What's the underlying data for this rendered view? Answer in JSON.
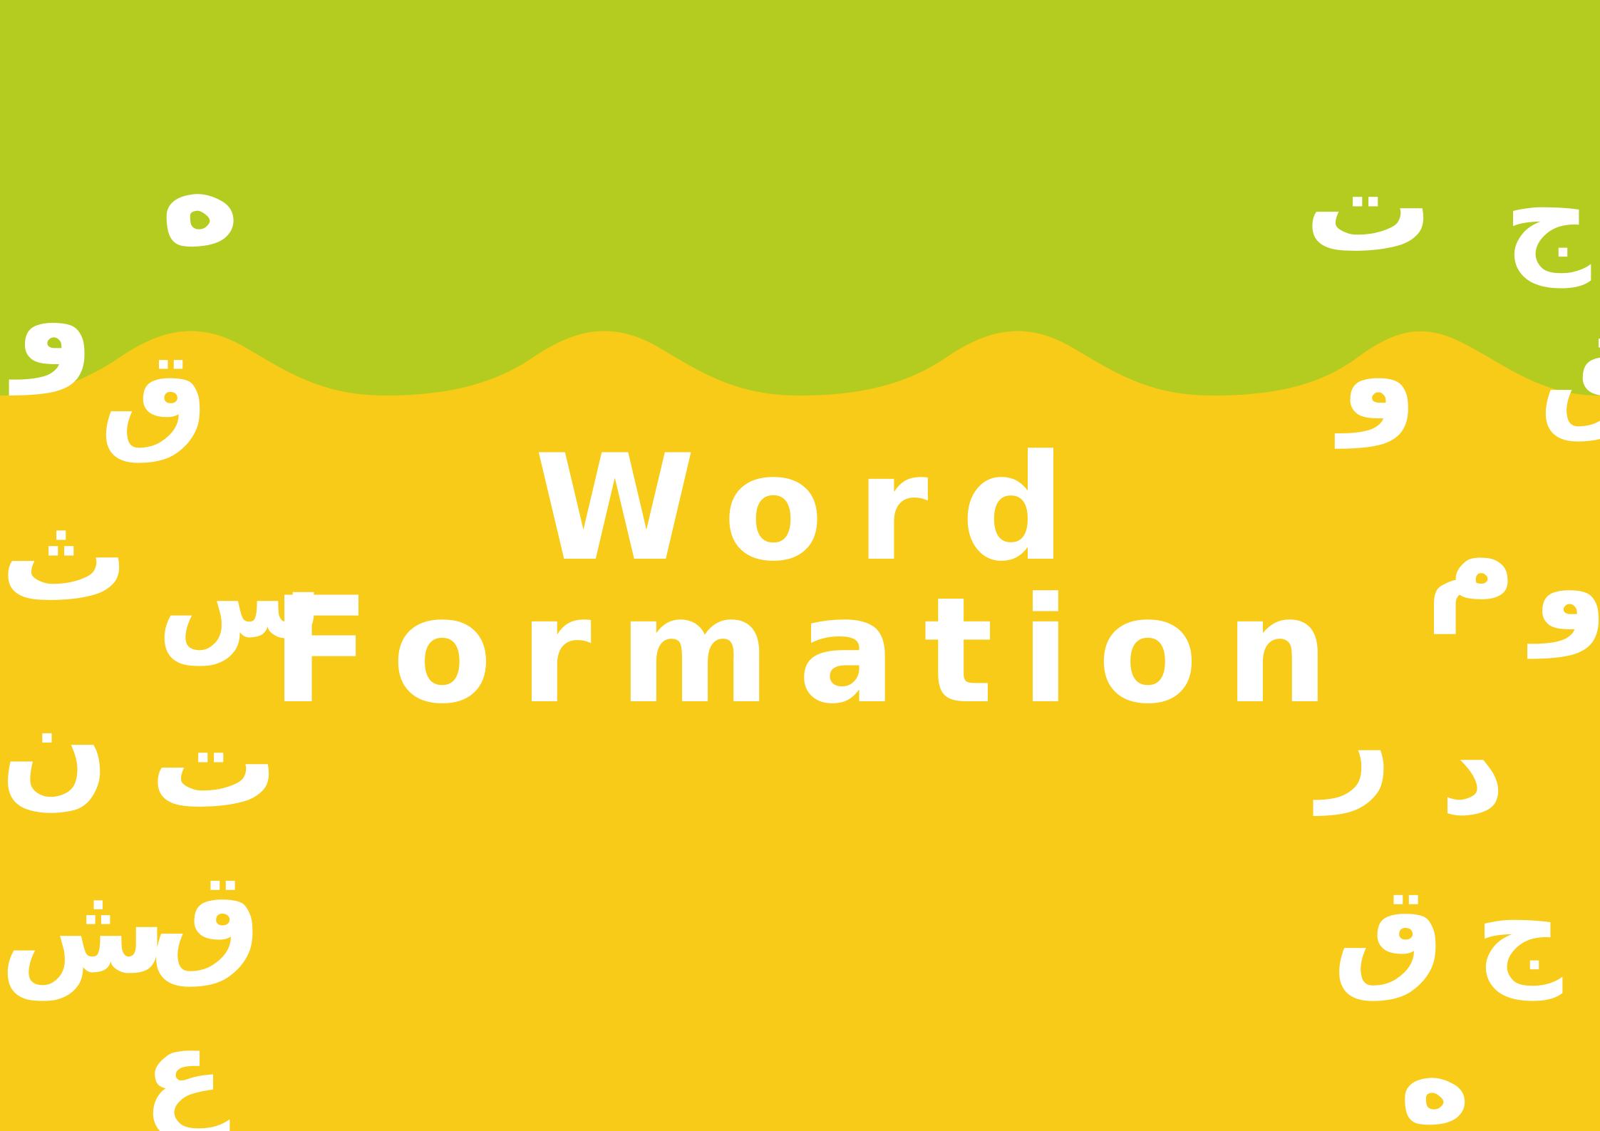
{
  "title": {
    "line1": "Word",
    "line2": "Formation"
  },
  "colors": {
    "top_band": "#b3cc1f",
    "main_background": "#f7cb17",
    "title_text": "#ffffff",
    "letters": "#ffffff"
  },
  "decorative_letters": {
    "left": [
      "ه",
      "و",
      "ق",
      "ث",
      "س",
      "ن",
      "ت",
      "ش",
      "ق",
      "ع"
    ],
    "right": [
      "ت",
      "ج",
      "و",
      "ق",
      "م",
      "و",
      "ر",
      "د",
      "ق",
      "ج",
      "ه"
    ]
  }
}
